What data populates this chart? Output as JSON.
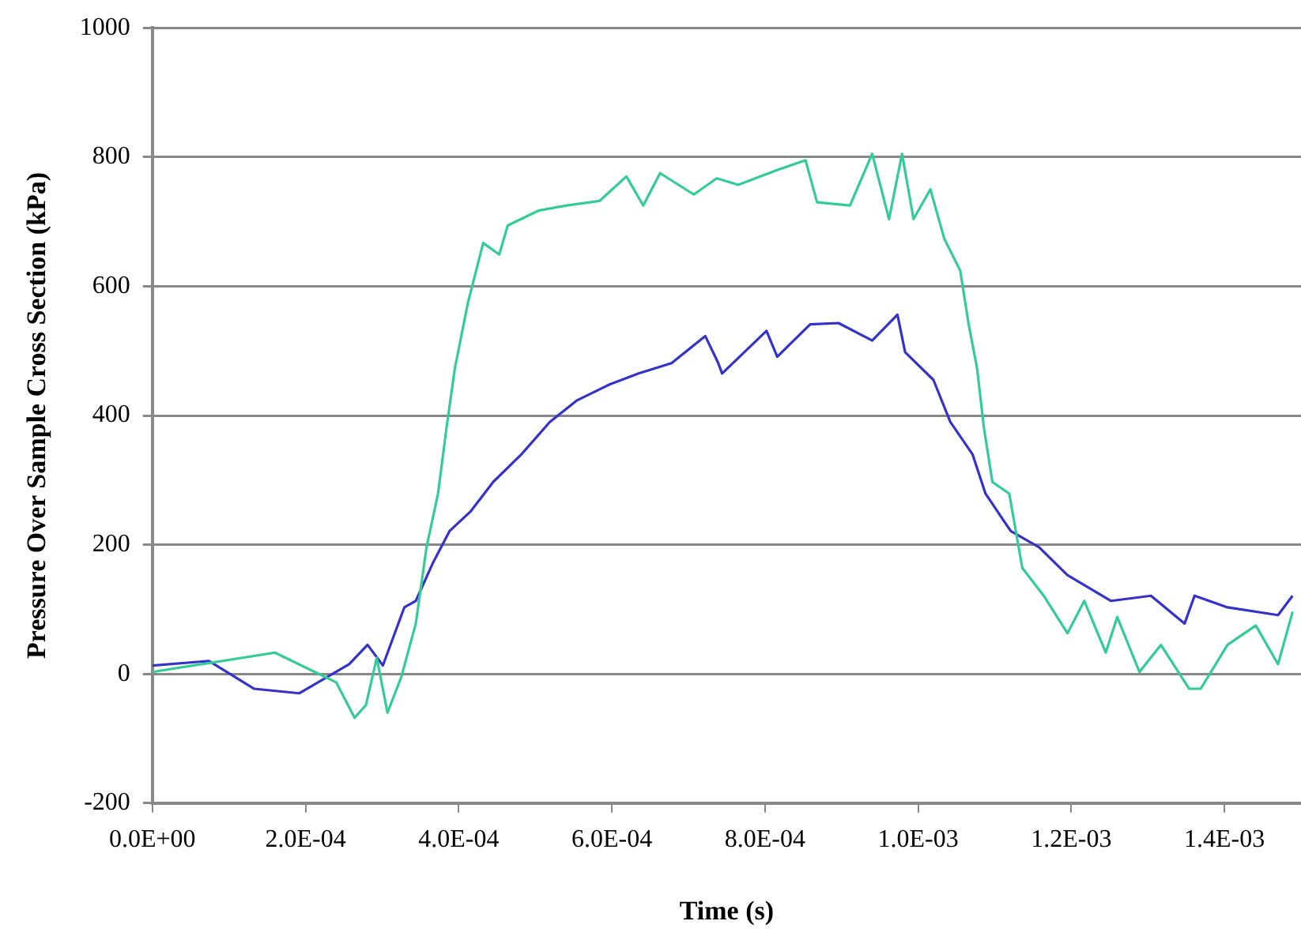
{
  "chart_data": {
    "type": "line",
    "xlabel": "Time (s)",
    "ylabel": "Pressure Over Sample Cross Section (kPa)",
    "xlim": [
      0,
      0.0015
    ],
    "ylim": [
      -200,
      1000
    ],
    "xticks": [
      {
        "value": 0,
        "label": "0.0E+00"
      },
      {
        "value": 0.0002,
        "label": "2.0E-04"
      },
      {
        "value": 0.0004,
        "label": "4.0E-04"
      },
      {
        "value": 0.0006,
        "label": "6.0E-04"
      },
      {
        "value": 0.0008,
        "label": "8.0E-04"
      },
      {
        "value": 0.001,
        "label": "1.0E-03"
      },
      {
        "value": 0.0012,
        "label": "1.2E-03"
      },
      {
        "value": 0.0014,
        "label": "1.4E-03"
      }
    ],
    "yticks": [
      -200,
      0,
      200,
      400,
      600,
      800,
      1000
    ],
    "grid": "y",
    "legend": false,
    "marker": "none",
    "line_style": "solid",
    "series": [
      {
        "color": "#33cc99",
        "x": [
          0,
          0.00016,
          0.00024,
          0.000264,
          0.000279,
          0.000293,
          0.000307,
          0.000325,
          0.000344,
          0.000358,
          0.000373,
          0.000384,
          0.000395,
          0.000412,
          0.000432,
          0.000453,
          0.000464,
          0.000504,
          0.000541,
          0.000584,
          0.000619,
          0.000641,
          0.000663,
          0.000707,
          0.000737,
          0.000765,
          0.000816,
          0.000853,
          0.000868,
          0.000911,
          0.00094,
          0.000962,
          0.000979,
          0.000994,
          0.001016,
          0.001034,
          0.001055,
          0.001066,
          0.001077,
          0.001086,
          0.001097,
          0.001119,
          0.001136,
          0.001164,
          0.001195,
          0.001217,
          0.001245,
          0.00126,
          0.001289,
          0.001317,
          0.001354,
          0.001369,
          0.001404,
          0.001441,
          0.00147,
          0.001489
        ],
        "values": [
          3,
          33,
          -13,
          -68,
          -48,
          25,
          -60,
          -5,
          78,
          196,
          279,
          380,
          473,
          574,
          667,
          649,
          694,
          717,
          725,
          732,
          770,
          725,
          775,
          742,
          767,
          757,
          780,
          795,
          730,
          725,
          805,
          704,
          805,
          704,
          750,
          674,
          624,
          541,
          473,
          380,
          297,
          279,
          164,
          121,
          63,
          113,
          33,
          88,
          3,
          45,
          -23,
          -23,
          45,
          75,
          15,
          96
        ]
      },
      {
        "color": "#3333cc",
        "x": [
          0,
          7.4e-05,
          0.000133,
          0.000192,
          0.000257,
          0.000281,
          0.000301,
          0.000329,
          0.000344,
          0.000366,
          0.000388,
          0.000416,
          0.000445,
          0.000482,
          0.000519,
          0.000554,
          0.000597,
          0.000635,
          0.000678,
          0.000722,
          0.000739,
          0.000744,
          0.000802,
          0.000816,
          0.000859,
          0.000896,
          0.00094,
          0.000973,
          0.000983,
          0.00102,
          0.001042,
          0.001071,
          0.001088,
          0.001121,
          0.001158,
          0.001195,
          0.001252,
          0.001304,
          0.001348,
          0.001361,
          0.001404,
          0.00147,
          0.001489
        ],
        "values": [
          13,
          20,
          -23,
          -30,
          15,
          45,
          13,
          103,
          113,
          171,
          221,
          252,
          297,
          340,
          390,
          423,
          448,
          465,
          481,
          523,
          481,
          465,
          531,
          491,
          541,
          543,
          516,
          556,
          498,
          455,
          390,
          340,
          279,
          221,
          196,
          153,
          113,
          121,
          78,
          121,
          103,
          91,
          121
        ]
      }
    ]
  }
}
